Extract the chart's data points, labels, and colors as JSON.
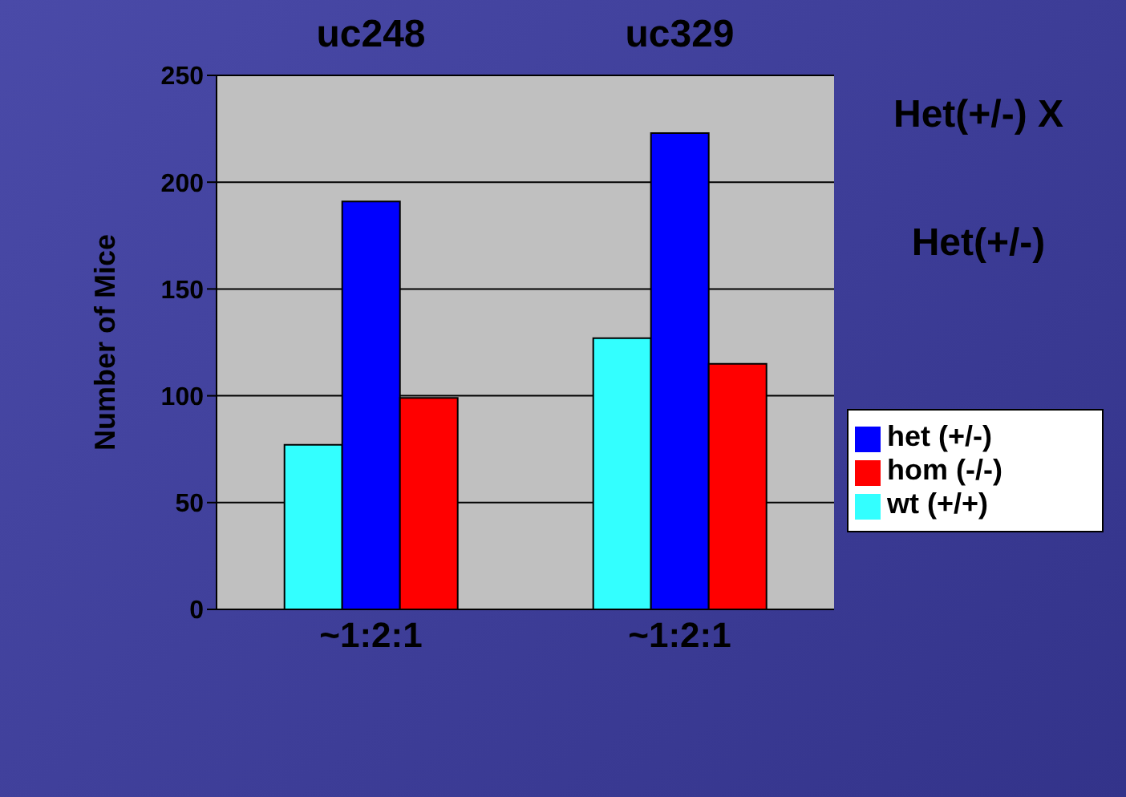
{
  "chart_data": {
    "type": "bar",
    "ylabel": "Number of Mice",
    "categories": [
      "~1:2:1",
      "~1:2:1"
    ],
    "series": [
      {
        "name": "wt (+/+)",
        "color": "#33ffff",
        "values": [
          77,
          127
        ]
      },
      {
        "name": "het (+/-)",
        "color": "#0000ff",
        "values": [
          191,
          223
        ]
      },
      {
        "name": "hom (-/-)",
        "color": "#ff0000",
        "values": [
          99,
          115
        ]
      }
    ],
    "ylim": [
      0,
      250
    ],
    "yticks": [
      0,
      50,
      100,
      150,
      200,
      250
    ],
    "grid": "y",
    "legend": "right",
    "annotations": [
      "uc248",
      "uc329",
      "Het(+/-) X",
      "Het(+/-)"
    ]
  }
}
